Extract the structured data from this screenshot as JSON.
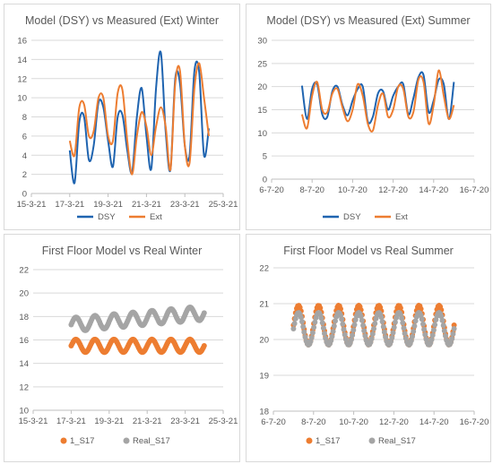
{
  "chart_data": [
    {
      "type": "line",
      "title": "Model (DSY) vs Measured (Ext) Winter",
      "xlabel": "",
      "ylabel": "",
      "xlim": [
        "15-3-21",
        "25-3-21"
      ],
      "ylim": [
        0,
        16
      ],
      "x_ticks": [
        "15-3-21",
        "17-3-21",
        "19-3-21",
        "21-3-21",
        "23-3-21",
        "25-3-21"
      ],
      "y_ticks": [
        "0",
        "2",
        "4",
        "6",
        "8",
        "10",
        "12",
        "14",
        "16"
      ],
      "grid": true,
      "legend": "bottom",
      "series": [
        {
          "name": "DSY",
          "color": "#1f64b0",
          "x": [
            "17-3-21 00:00",
            "17-3-21 06:00",
            "17-3-21 12:00",
            "17-3-21 18:00",
            "18-3-21 00:00",
            "18-3-21 06:00",
            "18-3-21 12:00",
            "18-3-21 18:00",
            "19-3-21 00:00",
            "19-3-21 06:00",
            "19-3-21 12:00",
            "19-3-21 18:00",
            "20-3-21 00:00",
            "20-3-21 06:00",
            "20-3-21 12:00",
            "20-3-21 18:00",
            "21-3-21 00:00",
            "21-3-21 06:00",
            "21-3-21 12:00",
            "21-3-21 18:00",
            "22-3-21 00:00",
            "22-3-21 06:00",
            "22-3-21 12:00",
            "22-3-21 18:00",
            "23-3-21 00:00",
            "23-3-21 06:00",
            "23-3-21 12:00",
            "23-3-21 18:00",
            "24-3-21 00:00",
            "24-3-21 06:00"
          ],
          "values": [
            4.5,
            1.1,
            7.5,
            8.0,
            3.5,
            5.0,
            9.5,
            9.0,
            5.5,
            2.8,
            8.0,
            8.2,
            4.5,
            2.2,
            8.0,
            11.0,
            6.0,
            2.6,
            11.0,
            14.7,
            6.5,
            2.5,
            12.0,
            11.5,
            5.0,
            4.0,
            12.8,
            12.6,
            4.0,
            6.8
          ]
        },
        {
          "name": "Ext",
          "color": "#ed7d31",
          "x": [
            "17-3-21 00:00",
            "17-3-21 06:00",
            "17-3-21 12:00",
            "17-3-21 18:00",
            "18-3-21 00:00",
            "18-3-21 06:00",
            "18-3-21 12:00",
            "18-3-21 18:00",
            "19-3-21 00:00",
            "19-3-21 06:00",
            "19-3-21 12:00",
            "19-3-21 18:00",
            "20-3-21 00:00",
            "20-3-21 06:00",
            "20-3-21 12:00",
            "20-3-21 18:00",
            "21-3-21 00:00",
            "21-3-21 06:00",
            "21-3-21 12:00",
            "21-3-21 18:00",
            "22-3-21 00:00",
            "22-3-21 06:00",
            "22-3-21 12:00",
            "22-3-21 18:00",
            "23-3-21 00:00",
            "23-3-21 06:00",
            "23-3-21 12:00",
            "23-3-21 18:00",
            "24-3-21 00:00",
            "24-3-21 06:00"
          ],
          "values": [
            5.5,
            4.0,
            9.0,
            9.3,
            6.0,
            6.5,
            10.0,
            10.0,
            6.0,
            5.5,
            10.5,
            10.8,
            5.5,
            2.0,
            6.0,
            8.5,
            7.0,
            4.0,
            7.0,
            9.0,
            7.0,
            2.5,
            11.5,
            12.8,
            5.0,
            3.2,
            11.0,
            13.6,
            10.0,
            6.0
          ]
        }
      ]
    },
    {
      "type": "line",
      "title": "Model (DSY) vs Measured (Ext) Summer",
      "xlabel": "",
      "ylabel": "",
      "xlim": [
        "6-7-20",
        "16-7-20"
      ],
      "ylim": [
        0,
        30
      ],
      "x_ticks": [
        "6-7-20",
        "8-7-20",
        "10-7-20",
        "12-7-20",
        "14-7-20",
        "16-7-20"
      ],
      "y_ticks": [
        "0",
        "5",
        "10",
        "15",
        "20",
        "25",
        "30"
      ],
      "grid": true,
      "legend": "bottom",
      "series": [
        {
          "name": "DSY",
          "color": "#1f64b0",
          "x": [
            "7-7-20 12:00",
            "7-7-20 18:00",
            "8-7-20 00:00",
            "8-7-20 06:00",
            "8-7-20 12:00",
            "8-7-20 18:00",
            "9-7-20 00:00",
            "9-7-20 06:00",
            "9-7-20 12:00",
            "9-7-20 18:00",
            "10-7-20 00:00",
            "10-7-20 06:00",
            "10-7-20 12:00",
            "10-7-20 18:00",
            "11-7-20 00:00",
            "11-7-20 06:00",
            "11-7-20 12:00",
            "11-7-20 18:00",
            "12-7-20 00:00",
            "12-7-20 06:00",
            "12-7-20 12:00",
            "12-7-20 18:00",
            "13-7-20 00:00",
            "13-7-20 06:00",
            "13-7-20 12:00",
            "13-7-20 18:00",
            "14-7-20 00:00",
            "14-7-20 06:00",
            "14-7-20 12:00",
            "14-7-20 18:00",
            "15-7-20 00:00"
          ],
          "values": [
            20.2,
            13.0,
            19.5,
            20.5,
            14.0,
            13.5,
            19.0,
            20.0,
            16.0,
            13.8,
            17.0,
            19.5,
            20.0,
            12.5,
            13.5,
            18.5,
            19.0,
            15.0,
            18.0,
            20.0,
            20.5,
            14.0,
            17.5,
            22.0,
            22.5,
            14.5,
            17.0,
            21.5,
            20.5,
            13.0,
            21.0
          ]
        },
        {
          "name": "Ext",
          "color": "#ed7d31",
          "x": [
            "7-7-20 12:00",
            "7-7-20 18:00",
            "8-7-20 00:00",
            "8-7-20 06:00",
            "8-7-20 12:00",
            "8-7-20 18:00",
            "9-7-20 00:00",
            "9-7-20 06:00",
            "9-7-20 12:00",
            "9-7-20 18:00",
            "10-7-20 00:00",
            "10-7-20 06:00",
            "10-7-20 12:00",
            "10-7-20 18:00",
            "11-7-20 00:00",
            "11-7-20 06:00",
            "11-7-20 12:00",
            "11-7-20 18:00",
            "12-7-20 00:00",
            "12-7-20 06:00",
            "12-7-20 12:00",
            "12-7-20 18:00",
            "13-7-20 00:00",
            "13-7-20 06:00",
            "13-7-20 12:00",
            "13-7-20 18:00",
            "14-7-20 00:00",
            "14-7-20 06:00",
            "14-7-20 12:00",
            "14-7-20 18:00",
            "15-7-20 00:00"
          ],
          "values": [
            14.0,
            11.0,
            18.0,
            21.0,
            15.0,
            14.5,
            18.5,
            19.5,
            15.5,
            12.5,
            15.0,
            20.5,
            18.0,
            12.0,
            10.5,
            16.0,
            18.5,
            13.5,
            15.0,
            20.0,
            19.5,
            13.5,
            14.5,
            21.5,
            21.0,
            12.0,
            16.0,
            23.5,
            18.0,
            13.0,
            16.0
          ]
        }
      ]
    },
    {
      "type": "scatter",
      "title": "First Floor Model vs Real Winter",
      "xlabel": "",
      "ylabel": "",
      "xlim": [
        "15-3-21",
        "25-3-21"
      ],
      "ylim": [
        10,
        22
      ],
      "x_ticks": [
        "15-3-21",
        "17-3-21",
        "19-3-21",
        "21-3-21",
        "23-3-21",
        "25-3-21"
      ],
      "y_ticks": [
        "10",
        "12",
        "14",
        "16",
        "18",
        "20",
        "22"
      ],
      "grid": true,
      "legend": "bottom",
      "series": [
        {
          "name": "1_S17",
          "color": "#ed7d31",
          "x_range": [
            "17-3-21",
            "24-3-21"
          ],
          "cycle_days": 1,
          "baseline": 15.5,
          "amplitude": 0.55
        },
        {
          "name": "Real_S17",
          "color": "#a5a5a5",
          "x_range": [
            "17-3-21",
            "24-3-21"
          ],
          "cycle_days": 1,
          "baseline": 17.3,
          "amplitude": 0.6,
          "trend_end": 18.3
        }
      ]
    },
    {
      "type": "scatter",
      "title": "First Floor Model vs Real Summer",
      "xlabel": "",
      "ylabel": "",
      "xlim": [
        "6-7-20",
        "16-7-20"
      ],
      "ylim": [
        18,
        22
      ],
      "x_ticks": [
        "6-7-20",
        "8-7-20",
        "10-7-20",
        "12-7-20",
        "14-7-20",
        "16-7-20"
      ],
      "y_ticks": [
        "18",
        "19",
        "20",
        "21",
        "22"
      ],
      "grid": true,
      "legend": "bottom",
      "series": [
        {
          "name": "1_S17",
          "color": "#ed7d31",
          "x_range": [
            "7-7-20",
            "15-7-20"
          ],
          "cycle_days": 1,
          "baseline": 20.4,
          "amplitude": 0.55
        },
        {
          "name": "Real_S17",
          "color": "#a5a5a5",
          "x_range": [
            "7-7-20",
            "15-7-20"
          ],
          "cycle_days": 1,
          "baseline": 20.3,
          "amplitude": 0.45
        }
      ]
    }
  ]
}
